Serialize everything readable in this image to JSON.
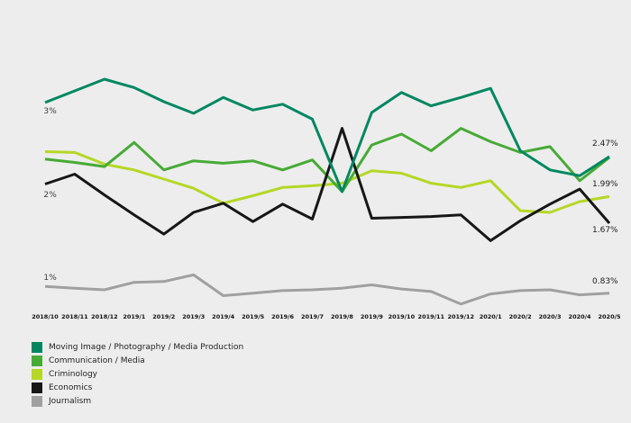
{
  "chart_data": {
    "type": "line",
    "title": "",
    "xlabel": "",
    "ylabel": "",
    "grid": false,
    "background_color": "#ededed",
    "legend_position": "bottom-left",
    "y_ticks": [
      "3%",
      "2%",
      "1%"
    ],
    "y_tick_values": [
      3,
      2,
      1
    ],
    "ylim": [
      0.55,
      3.6
    ],
    "x_categories": [
      "2018/10",
      "2018/11",
      "2018/12",
      "2019/1",
      "2019/2",
      "2019/3",
      "2019/4",
      "2019/5",
      "2019/6",
      "2019/7",
      "2019/8",
      "2019/9",
      "2019/10",
      "2019/11",
      "2019/12",
      "2020/1",
      "2020/2",
      "2020/3",
      "2020/4",
      "2020/5"
    ],
    "series": [
      {
        "name": "Moving Image / Photography / Media Production",
        "color": "#008761",
        "end_label": "2.47%",
        "values": [
          3.12,
          3.26,
          3.4,
          3.3,
          3.13,
          2.99,
          3.18,
          3.03,
          3.1,
          2.92,
          2.05,
          3.0,
          3.24,
          3.08,
          3.18,
          3.29,
          2.54,
          2.31,
          2.24,
          2.47
        ]
      },
      {
        "name": "Communication / Media",
        "color": "#46ab35",
        "end_label": null,
        "values": [
          2.44,
          2.4,
          2.35,
          2.64,
          2.31,
          2.42,
          2.39,
          2.42,
          2.31,
          2.43,
          2.05,
          2.61,
          2.74,
          2.54,
          2.81,
          2.65,
          2.52,
          2.59,
          2.18,
          2.46
        ]
      },
      {
        "name": "Criminology",
        "color": "#b5d725",
        "end_label": "1.99%",
        "values": [
          2.53,
          2.52,
          2.38,
          2.31,
          2.2,
          2.09,
          1.91,
          2.0,
          2.1,
          2.12,
          2.15,
          2.3,
          2.27,
          2.15,
          2.1,
          2.18,
          1.82,
          1.8,
          1.93,
          1.99
        ]
      },
      {
        "name": "Economics",
        "color": "#171717",
        "end_label": "1.67%",
        "values": [
          2.14,
          2.26,
          2.01,
          1.77,
          1.54,
          1.8,
          1.91,
          1.69,
          1.9,
          1.72,
          2.81,
          1.73,
          1.74,
          1.75,
          1.77,
          1.46,
          1.7,
          1.9,
          2.08,
          1.67
        ]
      },
      {
        "name": "Journalism",
        "color": "#a0a0a0",
        "end_label": "0.83%",
        "values": [
          0.91,
          0.89,
          0.87,
          0.96,
          0.97,
          1.05,
          0.8,
          0.83,
          0.86,
          0.87,
          0.89,
          0.93,
          0.88,
          0.85,
          0.7,
          0.82,
          0.86,
          0.87,
          0.81,
          0.83
        ]
      }
    ]
  }
}
